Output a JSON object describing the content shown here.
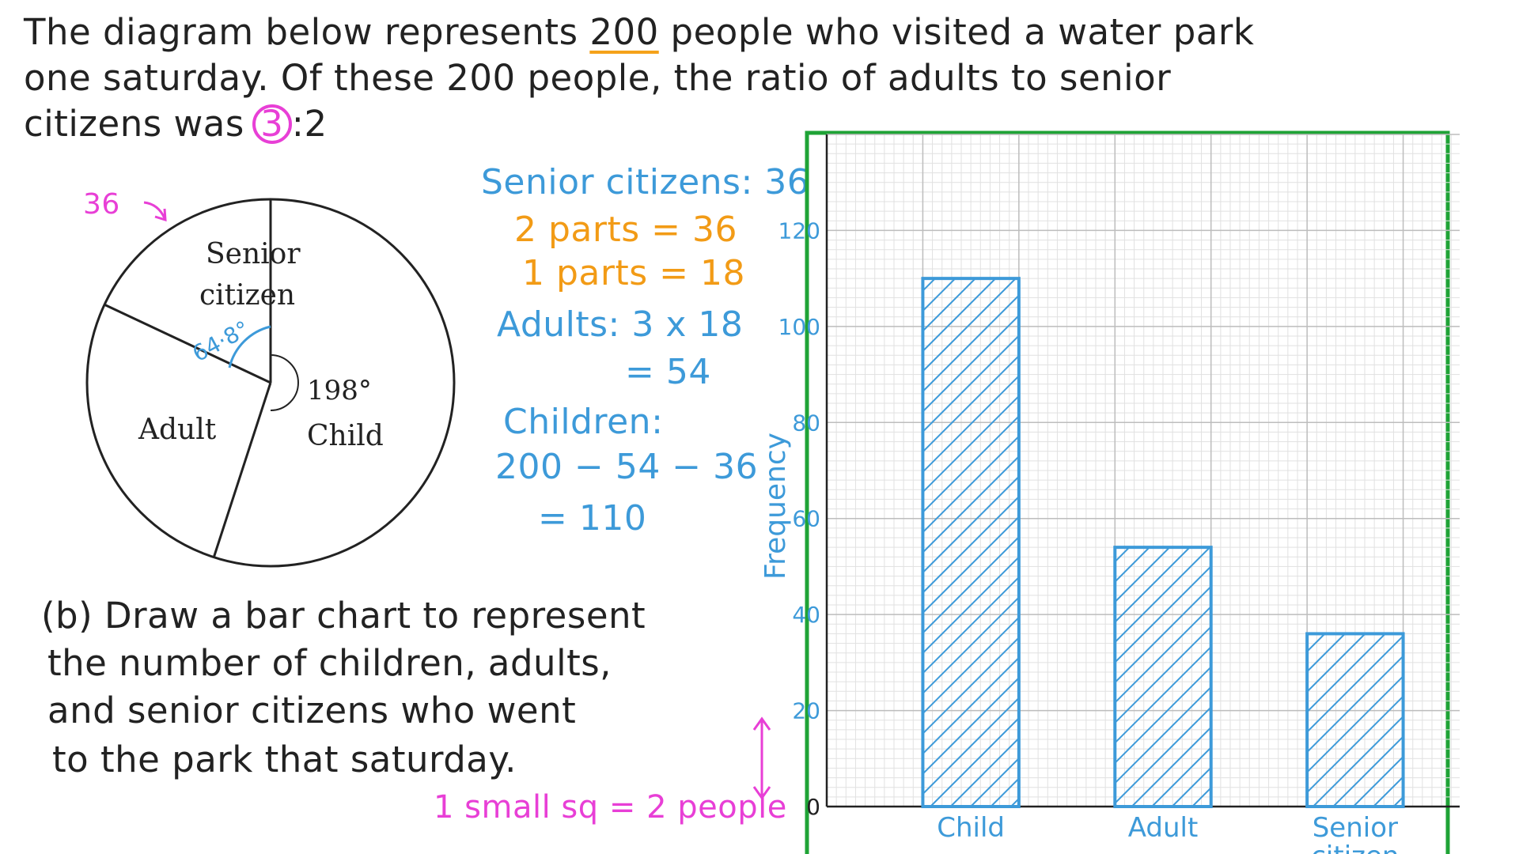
{
  "problem": {
    "line1_a": "The diagram below represents",
    "line1_total": "200",
    "line1_b": "people who visited a water park",
    "line2": "one saturday. Of these 200 people, the ratio of adults to senior",
    "line3_a": "citizens was",
    "line3_ratio_first": "3",
    "line3_ratio_rest": ":2"
  },
  "pie": {
    "annotation_36": "36",
    "label_senior_line1": "Senior",
    "label_senior_line2": "citizen",
    "angle_senior": "64·8°",
    "angle_child": "198°",
    "label_child": "Child",
    "label_adult": "Adult",
    "sectors": [
      {
        "name": "Child",
        "angle": 198
      },
      {
        "name": "Adult",
        "angle": 97.2
      },
      {
        "name": "Senior citizen",
        "angle": 64.8
      }
    ]
  },
  "working": {
    "senior": "Senior citizens: 36",
    "two_parts": "2 parts = 36",
    "one_part": "1 parts = 18",
    "adults_1": "Adults: 3 x 18",
    "adults_2": "= 54",
    "children_1": "Children:",
    "children_2": "200 − 54 − 36",
    "children_3": "= 110"
  },
  "part_b": {
    "line1": "(b) Draw a bar chart to represent",
    "line2": "the number of children, adults,",
    "line3": "and senior citizens who went",
    "line4": "to the park that saturday."
  },
  "scale_note": "1 small sq = 2 people",
  "chart_data": {
    "type": "bar",
    "categories": [
      "Child",
      "Adult",
      "Senior citizen"
    ],
    "values": [
      110,
      54,
      36
    ],
    "ylabel": "Frequency",
    "xlabel": "",
    "ylim": [
      0,
      140
    ],
    "y_ticks": [
      0,
      20,
      40,
      60,
      80,
      100,
      120
    ],
    "grid": true,
    "bar_color": "#3d9ad9",
    "frame_color": "#1fa336"
  }
}
